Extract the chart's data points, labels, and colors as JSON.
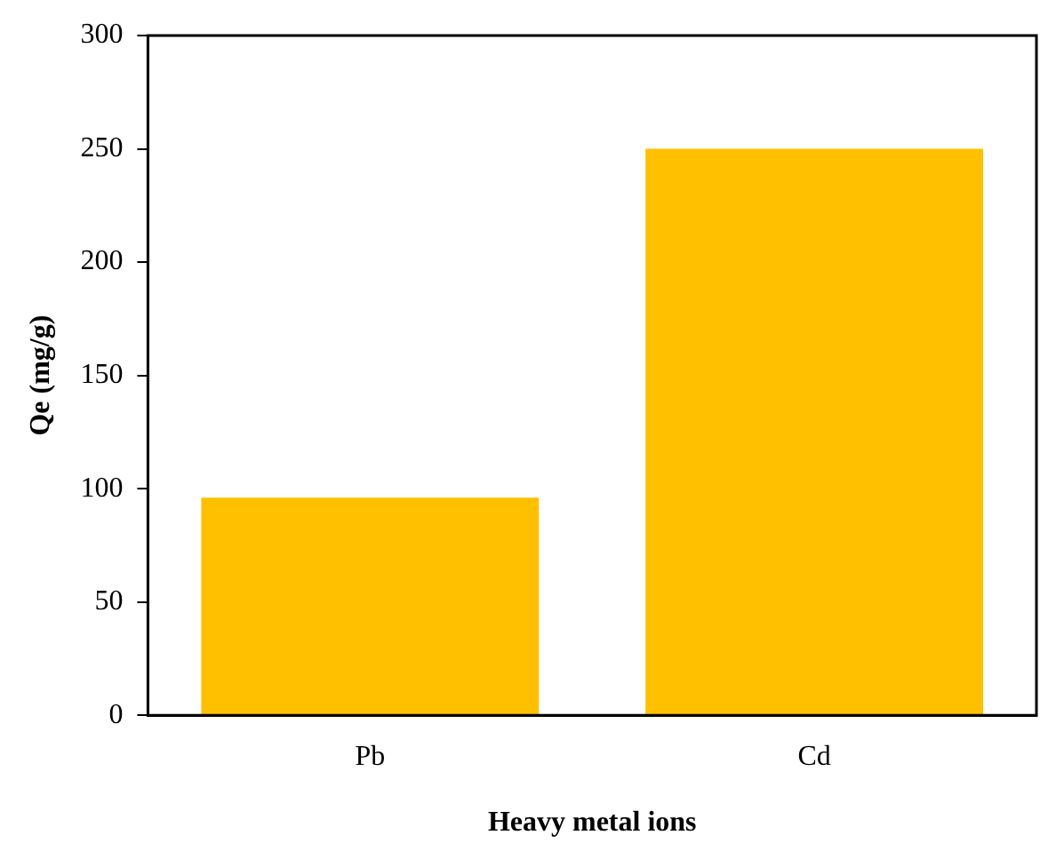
{
  "chart_data": {
    "type": "bar",
    "xlabel": "Heavy metal ions",
    "ylabel": "Qe (mg/g)",
    "categories": [
      "Pb",
      "Cd"
    ],
    "values": [
      96,
      250
    ],
    "color": "#ffc000",
    "ylim": [
      0,
      300
    ],
    "yticks": [
      0,
      50,
      100,
      150,
      200,
      250,
      300
    ],
    "grid": false,
    "legend": false
  }
}
